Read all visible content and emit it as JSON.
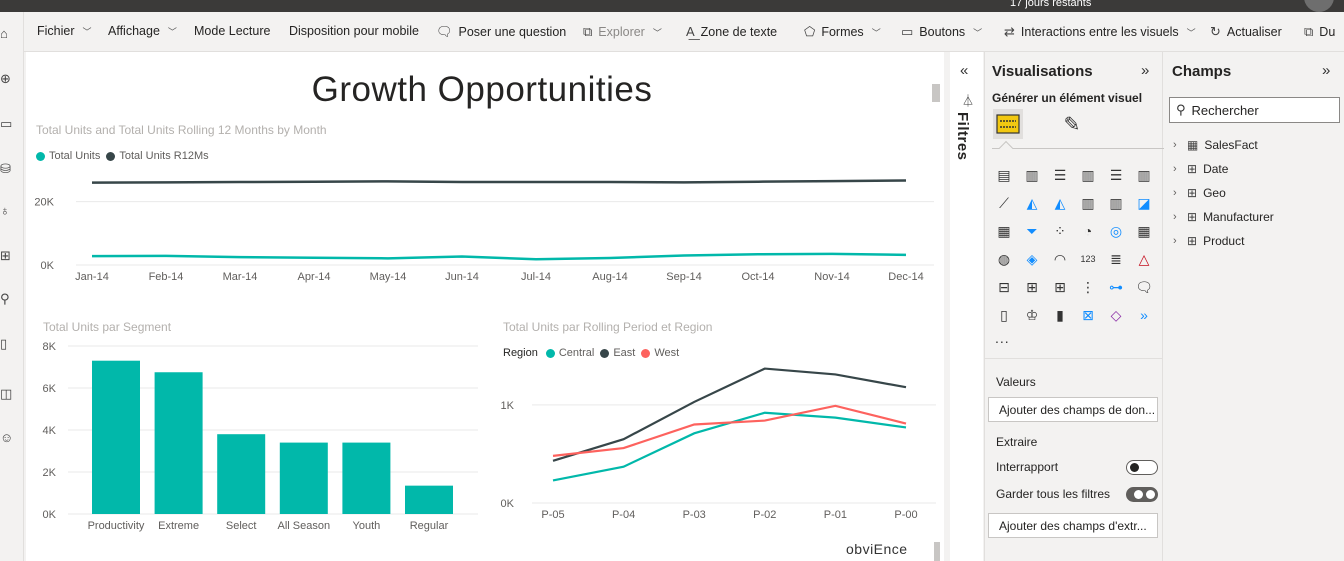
{
  "header": {
    "trial_text": "17 jours restants"
  },
  "left_nav": {
    "icons": [
      "home-icon",
      "create-icon",
      "browse-icon",
      "data-hub-icon",
      "goals-icon",
      "apps-icon",
      "learn-icon",
      "workspaces-icon",
      "workspace-icon",
      "account-icon"
    ]
  },
  "toolbar": {
    "items": [
      {
        "label": "Fichier",
        "has_dropdown": true
      },
      {
        "label": "Affichage",
        "has_dropdown": true
      },
      {
        "label": "Mode Lecture",
        "has_dropdown": false
      },
      {
        "label": "Disposition pour mobile",
        "has_dropdown": false
      },
      {
        "label": "Poser une question",
        "has_dropdown": false,
        "icon": "qa-icon"
      },
      {
        "label": "Explorer",
        "has_dropdown": true,
        "icon": "explore-icon",
        "disabled": true
      },
      {
        "label": "Zone de texte",
        "has_dropdown": false,
        "icon": "textbox-icon"
      },
      {
        "label": "Formes",
        "has_dropdown": true,
        "icon": "shapes-icon"
      },
      {
        "label": "Boutons",
        "has_dropdown": true,
        "icon": "buttons-icon"
      },
      {
        "label": "Interactions entre les visuels",
        "has_dropdown": true,
        "icon": "interactions-icon"
      },
      {
        "label": "Actualiser",
        "has_dropdown": false,
        "icon": "refresh-icon"
      },
      {
        "label": "Du",
        "has_dropdown": false,
        "icon": "duplicate-icon"
      }
    ]
  },
  "report": {
    "title": "Growth Opportunities",
    "watermark": "obviEnce"
  },
  "chart_data": [
    {
      "type": "line",
      "title": "Total Units and Total Units Rolling 12 Months by Month",
      "categories": [
        "Jan-14",
        "Feb-14",
        "Mar-14",
        "Apr-14",
        "May-14",
        "Jun-14",
        "Jul-14",
        "Aug-14",
        "Sep-14",
        "Oct-14",
        "Nov-14",
        "Dec-14"
      ],
      "series": [
        {
          "name": "Total Units",
          "color": "#01b8aa",
          "values": [
            2800,
            2900,
            2500,
            2300,
            2100,
            2700,
            1800,
            2200,
            3000,
            3400,
            3500,
            3200
          ]
        },
        {
          "name": "Total Units R12Ms",
          "color": "#374649",
          "values": [
            26000,
            26100,
            26200,
            26300,
            26400,
            26200,
            26200,
            26200,
            26100,
            26300,
            26500,
            26700
          ]
        }
      ],
      "y_ticks": [
        "0K",
        "20K"
      ],
      "ylim": [
        0,
        30000
      ],
      "legend_position": "top-left"
    },
    {
      "type": "bar",
      "title": "Total Units par Segment",
      "categories": [
        "Productivity",
        "Extreme",
        "Select",
        "All Season",
        "Youth",
        "Regular"
      ],
      "values": [
        7300,
        6750,
        3800,
        3400,
        3400,
        1350
      ],
      "color": "#01b8aa",
      "y_ticks": [
        "0K",
        "2K",
        "4K",
        "6K",
        "8K"
      ],
      "ylim": [
        0,
        8000
      ]
    },
    {
      "type": "line",
      "title": "Total Units par Rolling Period et Region",
      "legend_title": "Region",
      "categories": [
        "P-05",
        "P-04",
        "P-03",
        "P-02",
        "P-01",
        "P-00"
      ],
      "series": [
        {
          "name": "Central",
          "color": "#01b8aa",
          "values": [
            230,
            370,
            710,
            920,
            870,
            770
          ]
        },
        {
          "name": "East",
          "color": "#374649",
          "values": [
            430,
            650,
            1030,
            1370,
            1310,
            1180
          ]
        },
        {
          "name": "West",
          "color": "#fd625e",
          "values": [
            480,
            560,
            800,
            840,
            990,
            810
          ]
        }
      ],
      "y_ticks": [
        "0K",
        "1K"
      ],
      "ylim": [
        0,
        1600
      ],
      "legend_position": "top-left"
    }
  ],
  "filters_pane": {
    "label": "Filtres"
  },
  "visualizations_pane": {
    "title": "Visualisations",
    "generate_label": "Générer un élément visuel",
    "more_label": "...",
    "values_label": "Valeurs",
    "values_placeholder": "Ajouter des champs de don...",
    "drillthrough_label": "Extraire",
    "cross_report_label": "Interrapport",
    "cross_report_state": "Désactivé",
    "keep_filters_label": "Garder tous les filtres",
    "keep_filters_state": "Activé",
    "drillthrough_placeholder": "Ajouter des champs d'extr..."
  },
  "fields_pane": {
    "title": "Champs",
    "search_placeholder": "Rechercher",
    "tables": [
      "SalesFact",
      "Date",
      "Geo",
      "Manufacturer",
      "Product"
    ]
  }
}
